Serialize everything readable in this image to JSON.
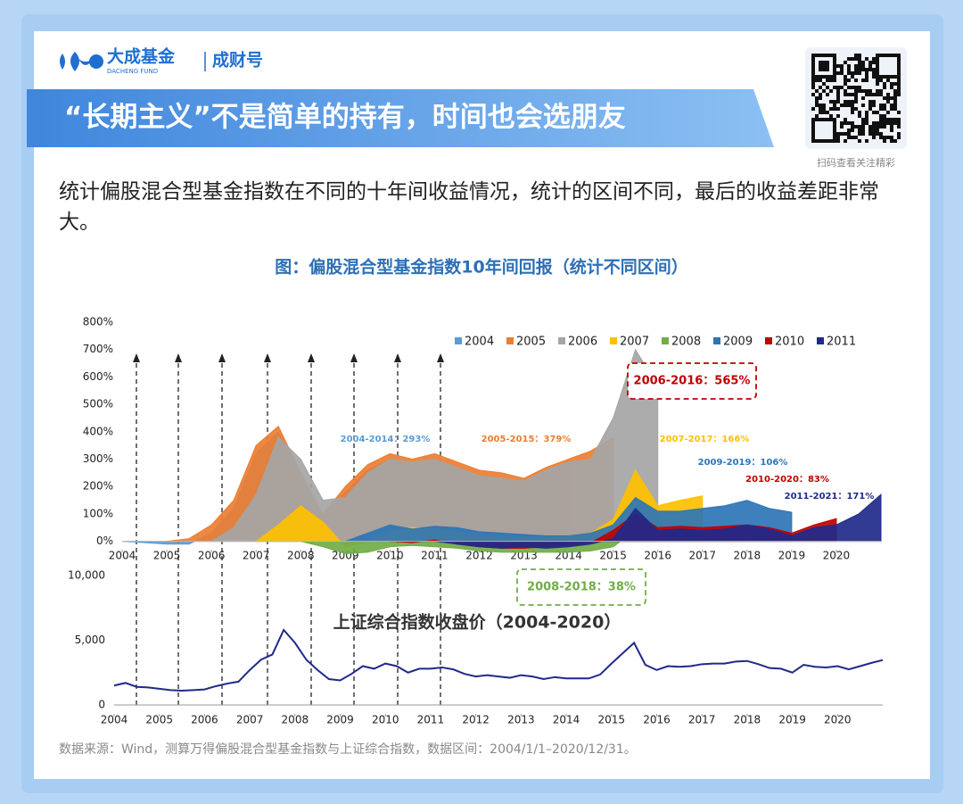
{
  "header": {
    "brand": "大成基金",
    "brand_en": "DACHENG FUND",
    "channel": "成财号",
    "title": "“长期主义”不是简单的持有，时间也会选朋友",
    "qr_caption": "扫码查看关注精彩"
  },
  "intro": "统计偏股混合型基金指数在不同的十年间收益情况，统计的区间不同，最后的收益差距非常大。",
  "figure_title": "图：偏股混合型基金指数10年间回报（统计不同区间）",
  "chart_data": [
    {
      "type": "area",
      "x": [
        2004,
        2004.5,
        2005,
        2005.5,
        2006,
        2006.5,
        2007,
        2007.5,
        2008,
        2008.5,
        2009,
        2009.5,
        2010,
        2010.5,
        2011,
        2011.5,
        2012,
        2012.5,
        2013,
        2013.5,
        2014,
        2014.5,
        2015,
        2015.5,
        2016,
        2016.5,
        2017,
        2017.5,
        2018,
        2018.5,
        2019,
        2019.5,
        2020,
        2020.5,
        2021
      ],
      "xlim": [
        2004,
        2021
      ],
      "xticks": [
        2004,
        2005,
        2006,
        2007,
        2008,
        2009,
        2010,
        2011,
        2012,
        2013,
        2014,
        2015,
        2016,
        2017,
        2018,
        2019,
        2020
      ],
      "ylim": [
        -50,
        800
      ],
      "yticks": [
        {
          "value": 0,
          "label": "0%"
        },
        {
          "value": 100,
          "label": "100%"
        },
        {
          "value": 200,
          "label": "200%"
        },
        {
          "value": 300,
          "label": "300%"
        },
        {
          "value": 400,
          "label": "400%"
        },
        {
          "value": 500,
          "label": "500%"
        },
        {
          "value": 600,
          "label": "600%"
        },
        {
          "value": 700,
          "label": "700%"
        },
        {
          "value": 800,
          "label": "800%"
        }
      ],
      "legend": "top-right",
      "series": [
        {
          "name": "2004",
          "color": "#5b9bd5",
          "values": [
            0,
            -5,
            -10,
            -10,
            30,
            120,
            320,
            400,
            230,
            90,
            180,
            260,
            300,
            280,
            300,
            270,
            240,
            230,
            220,
            250,
            293,
            null,
            null,
            null,
            null,
            null,
            null,
            null,
            null,
            null,
            null,
            null,
            null,
            null,
            null
          ]
        },
        {
          "name": "2005",
          "color": "#ed7d31",
          "values": [
            null,
            null,
            0,
            10,
            60,
            150,
            350,
            420,
            250,
            100,
            200,
            280,
            320,
            300,
            320,
            290,
            260,
            250,
            230,
            270,
            300,
            330,
            379,
            null,
            null,
            null,
            null,
            null,
            null,
            null,
            null,
            null,
            null,
            null,
            null
          ]
        },
        {
          "name": "2006",
          "color": "#a5a5a5",
          "values": [
            null,
            null,
            null,
            null,
            0,
            50,
            170,
            380,
            300,
            150,
            160,
            250,
            300,
            290,
            300,
            270,
            240,
            230,
            220,
            260,
            290,
            300,
            450,
            700,
            565,
            null,
            null,
            null,
            null,
            null,
            null,
            null,
            null,
            null,
            null
          ]
        },
        {
          "name": "2007",
          "color": "#ffc000",
          "values": [
            null,
            null,
            null,
            null,
            null,
            null,
            0,
            60,
            130,
            70,
            -20,
            0,
            40,
            50,
            45,
            35,
            20,
            15,
            10,
            15,
            20,
            30,
            80,
            260,
            130,
            150,
            166,
            null,
            null,
            null,
            null,
            null,
            null,
            null,
            null
          ]
        },
        {
          "name": "2008",
          "color": "#70ad47",
          "values": [
            null,
            null,
            null,
            null,
            null,
            null,
            null,
            null,
            0,
            -20,
            -45,
            -40,
            -20,
            -15,
            -20,
            -25,
            -35,
            -40,
            -40,
            -40,
            -40,
            -35,
            -20,
            40,
            20,
            25,
            30,
            35,
            38,
            null,
            null,
            null,
            null,
            null,
            null
          ]
        },
        {
          "name": "2009",
          "color": "#2e75b6",
          "values": [
            null,
            null,
            null,
            null,
            null,
            null,
            null,
            null,
            null,
            null,
            0,
            30,
            60,
            45,
            55,
            50,
            35,
            30,
            25,
            20,
            20,
            30,
            60,
            160,
            110,
            110,
            120,
            130,
            150,
            120,
            106,
            null,
            null,
            null,
            null
          ]
        },
        {
          "name": "2010",
          "color": "#c00000",
          "values": [
            null,
            null,
            null,
            null,
            null,
            null,
            null,
            null,
            null,
            null,
            null,
            null,
            0,
            -5,
            5,
            -10,
            -20,
            -25,
            -25,
            -20,
            -15,
            -5,
            40,
            100,
            50,
            55,
            50,
            55,
            60,
            50,
            30,
            60,
            83,
            null,
            null
          ]
        },
        {
          "name": "2011",
          "color": "#1f2a8a",
          "values": [
            null,
            null,
            null,
            null,
            null,
            null,
            null,
            null,
            null,
            null,
            null,
            null,
            null,
            null,
            0,
            -10,
            -20,
            -25,
            -20,
            -25,
            -20,
            -10,
            10,
            120,
            40,
            45,
            40,
            45,
            60,
            45,
            20,
            50,
            60,
            100,
            171
          ]
        }
      ],
      "annotations": [
        {
          "text": "2004-2014：293%",
          "color": "#5b9bd5"
        },
        {
          "text": "2005-2015：379%",
          "color": "#ed7d31"
        },
        {
          "text": "2006-2016：565%",
          "color": "#c00000"
        },
        {
          "text": "2007-2017：166%",
          "color": "#ffc000"
        },
        {
          "text": "2008-2018：38%",
          "color": "#70ad47"
        },
        {
          "text": "2009-2019：106%",
          "color": "#2e75b6"
        },
        {
          "text": "2010-2020：83%",
          "color": "#c00000"
        },
        {
          "text": "2011-2021：171%",
          "color": "#1f2a8a"
        }
      ]
    },
    {
      "type": "line",
      "title": "上证综合指数收盘价（2004-2020）",
      "color": "#1f2a8a",
      "x": [
        2004,
        2004.25,
        2004.5,
        2004.75,
        2005,
        2005.25,
        2005.5,
        2005.75,
        2006,
        2006.25,
        2006.5,
        2006.75,
        2007,
        2007.25,
        2007.5,
        2007.75,
        2008,
        2008.25,
        2008.5,
        2008.75,
        2009,
        2009.25,
        2009.5,
        2009.75,
        2010,
        2010.25,
        2010.5,
        2010.75,
        2011,
        2011.25,
        2011.5,
        2011.75,
        2012,
        2012.25,
        2012.5,
        2012.75,
        2013,
        2013.25,
        2013.5,
        2013.75,
        2014,
        2014.25,
        2014.5,
        2014.75,
        2015,
        2015.25,
        2015.5,
        2015.75,
        2016,
        2016.25,
        2016.5,
        2016.75,
        2017,
        2017.25,
        2017.5,
        2017.75,
        2018,
        2018.25,
        2018.5,
        2018.75,
        2019,
        2019.25,
        2019.5,
        2019.75,
        2020,
        2020.25,
        2020.5,
        2020.75,
        2021
      ],
      "values": [
        1500,
        1700,
        1400,
        1350,
        1250,
        1150,
        1100,
        1150,
        1200,
        1450,
        1650,
        1800,
        2700,
        3500,
        3900,
        5800,
        4800,
        3500,
        2700,
        2000,
        1900,
        2400,
        3000,
        2800,
        3200,
        3000,
        2500,
        2800,
        2800,
        2900,
        2750,
        2400,
        2200,
        2300,
        2200,
        2100,
        2300,
        2200,
        2000,
        2150,
        2050,
        2050,
        2050,
        2350,
        3200,
        4000,
        4800,
        3100,
        2700,
        3000,
        2950,
        3000,
        3150,
        3200,
        3200,
        3350,
        3400,
        3150,
        2850,
        2800,
        2500,
        3100,
        2950,
        2900,
        3000,
        2750,
        3000,
        3250,
        3470
      ],
      "xlim": [
        2004,
        2021
      ],
      "xticks": [
        2004,
        2005,
        2006,
        2007,
        2008,
        2009,
        2010,
        2011,
        2012,
        2013,
        2014,
        2015,
        2016,
        2017,
        2018,
        2019,
        2020
      ],
      "ylim": [
        0,
        10000
      ],
      "yticks": [
        0,
        {
          "value": 5000,
          "label": "5,000"
        },
        {
          "value": 10000,
          "label": "10,000"
        }
      ]
    }
  ],
  "source": "数据来源：Wind，测算万得偏股混合型基金指数与上证综合指数，数据区间：2004/1/1–2020/12/31。"
}
